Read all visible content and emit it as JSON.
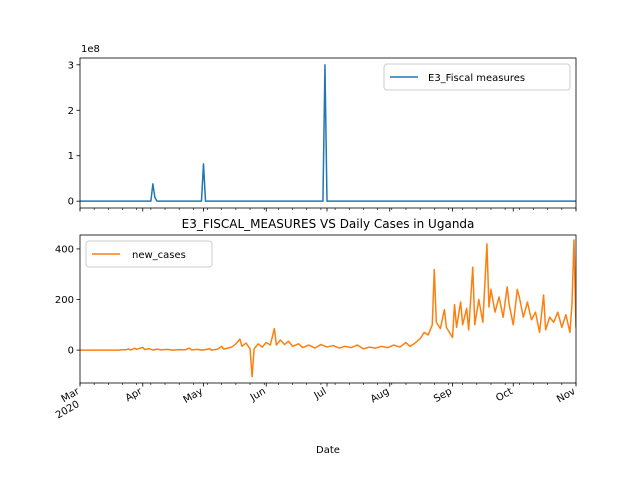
{
  "chart_data": [
    {
      "type": "line",
      "xlim": [
        "2020-03-01",
        "2020-11-01"
      ],
      "ylim": [
        -15000000,
        315000000
      ],
      "y_offset_label": "1e8",
      "yticks": [
        {
          "value": 0,
          "label": "0"
        },
        {
          "value": 100000000,
          "label": "1"
        },
        {
          "value": 200000000,
          "label": "2"
        },
        {
          "value": 300000000,
          "label": "3"
        }
      ],
      "xtick_labels_visible": false,
      "legend": {
        "placement": "upper right"
      },
      "grid": false,
      "series": [
        {
          "name": "E3_Fiscal measures",
          "color": "#1f77b4",
          "points": [
            {
              "x": "2020-03-01",
              "y": 0
            },
            {
              "x": "2020-04-05",
              "y": 0
            },
            {
              "x": "2020-04-06",
              "y": 38000000
            },
            {
              "x": "2020-04-07",
              "y": 8000000
            },
            {
              "x": "2020-04-08",
              "y": 0
            },
            {
              "x": "2020-04-30",
              "y": 0
            },
            {
              "x": "2020-05-01",
              "y": 82000000
            },
            {
              "x": "2020-05-02",
              "y": 0
            },
            {
              "x": "2020-06-29",
              "y": 0
            },
            {
              "x": "2020-06-30",
              "y": 300000000
            },
            {
              "x": "2020-07-01",
              "y": 0
            },
            {
              "x": "2020-11-01",
              "y": 0
            }
          ]
        }
      ]
    },
    {
      "type": "line",
      "title": "E3_FISCAL_MEASURES VS Daily Cases in Uganda",
      "xlabel": "Date",
      "xlim": [
        "2020-03-01",
        "2020-11-01"
      ],
      "ylim": [
        -130,
        455
      ],
      "yticks": [
        {
          "value": 0,
          "label": "0"
        },
        {
          "value": 200,
          "label": "200"
        },
        {
          "value": 400,
          "label": "400"
        }
      ],
      "xticks": [
        {
          "date": "2020-03-01",
          "label": "Mar",
          "sublabel": "2020"
        },
        {
          "date": "2020-04-01",
          "label": "Apr"
        },
        {
          "date": "2020-05-01",
          "label": "May"
        },
        {
          "date": "2020-06-01",
          "label": "Jun"
        },
        {
          "date": "2020-07-01",
          "label": "Jul"
        },
        {
          "date": "2020-08-01",
          "label": "Aug"
        },
        {
          "date": "2020-09-01",
          "label": "Sep"
        },
        {
          "date": "2020-10-01",
          "label": "Oct"
        },
        {
          "date": "2020-11-01",
          "label": "Nov"
        }
      ],
      "legend": {
        "placement": "upper left"
      },
      "grid": false,
      "series": [
        {
          "name": "new_cases",
          "color": "#ff7f0e",
          "points": [
            {
              "x": "2020-03-01",
              "y": 0
            },
            {
              "x": "2020-03-20",
              "y": 0
            },
            {
              "x": "2020-03-21",
              "y": 1
            },
            {
              "x": "2020-03-24",
              "y": 2
            },
            {
              "x": "2020-03-25",
              "y": 5
            },
            {
              "x": "2020-03-26",
              "y": 0
            },
            {
              "x": "2020-03-28",
              "y": 7
            },
            {
              "x": "2020-03-29",
              "y": 3
            },
            {
              "x": "2020-04-01",
              "y": 11
            },
            {
              "x": "2020-04-02",
              "y": 2
            },
            {
              "x": "2020-04-04",
              "y": 6
            },
            {
              "x": "2020-04-06",
              "y": 0
            },
            {
              "x": "2020-04-08",
              "y": 4
            },
            {
              "x": "2020-04-10",
              "y": 1
            },
            {
              "x": "2020-04-13",
              "y": 3
            },
            {
              "x": "2020-04-16",
              "y": 0
            },
            {
              "x": "2020-04-19",
              "y": 2
            },
            {
              "x": "2020-04-22",
              "y": 1
            },
            {
              "x": "2020-04-24",
              "y": 8
            },
            {
              "x": "2020-04-25",
              "y": 1
            },
            {
              "x": "2020-04-28",
              "y": 3
            },
            {
              "x": "2020-04-30",
              "y": 0
            },
            {
              "x": "2020-05-02",
              "y": 2
            },
            {
              "x": "2020-05-04",
              "y": 6
            },
            {
              "x": "2020-05-05",
              "y": 0
            },
            {
              "x": "2020-05-08",
              "y": 4
            },
            {
              "x": "2020-05-10",
              "y": 15
            },
            {
              "x": "2020-05-11",
              "y": 4
            },
            {
              "x": "2020-05-13",
              "y": 8
            },
            {
              "x": "2020-05-15",
              "y": 12
            },
            {
              "x": "2020-05-17",
              "y": 25
            },
            {
              "x": "2020-05-19",
              "y": 43
            },
            {
              "x": "2020-05-20",
              "y": 15
            },
            {
              "x": "2020-05-22",
              "y": 28
            },
            {
              "x": "2020-05-24",
              "y": 5
            },
            {
              "x": "2020-05-25",
              "y": -105
            },
            {
              "x": "2020-05-26",
              "y": 5
            },
            {
              "x": "2020-05-28",
              "y": 25
            },
            {
              "x": "2020-05-30",
              "y": 12
            },
            {
              "x": "2020-06-01",
              "y": 30
            },
            {
              "x": "2020-06-03",
              "y": 20
            },
            {
              "x": "2020-06-05",
              "y": 85
            },
            {
              "x": "2020-06-06",
              "y": 20
            },
            {
              "x": "2020-06-08",
              "y": 40
            },
            {
              "x": "2020-06-10",
              "y": 22
            },
            {
              "x": "2020-06-12",
              "y": 35
            },
            {
              "x": "2020-06-14",
              "y": 15
            },
            {
              "x": "2020-06-17",
              "y": 25
            },
            {
              "x": "2020-06-19",
              "y": 10
            },
            {
              "x": "2020-06-22",
              "y": 20
            },
            {
              "x": "2020-06-25",
              "y": 8
            },
            {
              "x": "2020-06-28",
              "y": 22
            },
            {
              "x": "2020-07-01",
              "y": 12
            },
            {
              "x": "2020-07-04",
              "y": 18
            },
            {
              "x": "2020-07-07",
              "y": 8
            },
            {
              "x": "2020-07-10",
              "y": 15
            },
            {
              "x": "2020-07-13",
              "y": 10
            },
            {
              "x": "2020-07-16",
              "y": 20
            },
            {
              "x": "2020-07-19",
              "y": 5
            },
            {
              "x": "2020-07-22",
              "y": 12
            },
            {
              "x": "2020-07-25",
              "y": 8
            },
            {
              "x": "2020-07-28",
              "y": 15
            },
            {
              "x": "2020-07-31",
              "y": 10
            },
            {
              "x": "2020-08-03",
              "y": 20
            },
            {
              "x": "2020-08-06",
              "y": 12
            },
            {
              "x": "2020-08-09",
              "y": 30
            },
            {
              "x": "2020-08-11",
              "y": 15
            },
            {
              "x": "2020-08-13",
              "y": 25
            },
            {
              "x": "2020-08-16",
              "y": 45
            },
            {
              "x": "2020-08-18",
              "y": 70
            },
            {
              "x": "2020-08-20",
              "y": 60
            },
            {
              "x": "2020-08-22",
              "y": 100
            },
            {
              "x": "2020-08-23",
              "y": 318
            },
            {
              "x": "2020-08-24",
              "y": 110
            },
            {
              "x": "2020-08-26",
              "y": 85
            },
            {
              "x": "2020-08-28",
              "y": 160
            },
            {
              "x": "2020-08-29",
              "y": 90
            },
            {
              "x": "2020-09-01",
              "y": 50
            },
            {
              "x": "2020-09-02",
              "y": 180
            },
            {
              "x": "2020-09-03",
              "y": 90
            },
            {
              "x": "2020-09-05",
              "y": 190
            },
            {
              "x": "2020-09-06",
              "y": 100
            },
            {
              "x": "2020-09-08",
              "y": 165
            },
            {
              "x": "2020-09-09",
              "y": 80
            },
            {
              "x": "2020-09-11",
              "y": 328
            },
            {
              "x": "2020-09-12",
              "y": 100
            },
            {
              "x": "2020-09-14",
              "y": 200
            },
            {
              "x": "2020-09-16",
              "y": 110
            },
            {
              "x": "2020-09-18",
              "y": 420
            },
            {
              "x": "2020-09-19",
              "y": 170
            },
            {
              "x": "2020-09-20",
              "y": 240
            },
            {
              "x": "2020-09-22",
              "y": 150
            },
            {
              "x": "2020-09-24",
              "y": 210
            },
            {
              "x": "2020-09-26",
              "y": 130
            },
            {
              "x": "2020-09-28",
              "y": 250
            },
            {
              "x": "2020-09-29",
              "y": 180
            },
            {
              "x": "2020-10-01",
              "y": 100
            },
            {
              "x": "2020-10-03",
              "y": 240
            },
            {
              "x": "2020-10-04",
              "y": 210
            },
            {
              "x": "2020-10-06",
              "y": 130
            },
            {
              "x": "2020-10-08",
              "y": 190
            },
            {
              "x": "2020-10-10",
              "y": 120
            },
            {
              "x": "2020-10-12",
              "y": 150
            },
            {
              "x": "2020-10-14",
              "y": 70
            },
            {
              "x": "2020-10-16",
              "y": 218
            },
            {
              "x": "2020-10-17",
              "y": 80
            },
            {
              "x": "2020-10-19",
              "y": 130
            },
            {
              "x": "2020-10-21",
              "y": 110
            },
            {
              "x": "2020-10-23",
              "y": 150
            },
            {
              "x": "2020-10-25",
              "y": 90
            },
            {
              "x": "2020-10-27",
              "y": 140
            },
            {
              "x": "2020-10-29",
              "y": 70
            },
            {
              "x": "2020-10-30",
              "y": 180
            },
            {
              "x": "2020-10-31",
              "y": 435
            },
            {
              "x": "2020-11-01",
              "y": 90
            },
            {
              "x": "2020-11-02",
              "y": 250
            }
          ]
        }
      ]
    }
  ]
}
